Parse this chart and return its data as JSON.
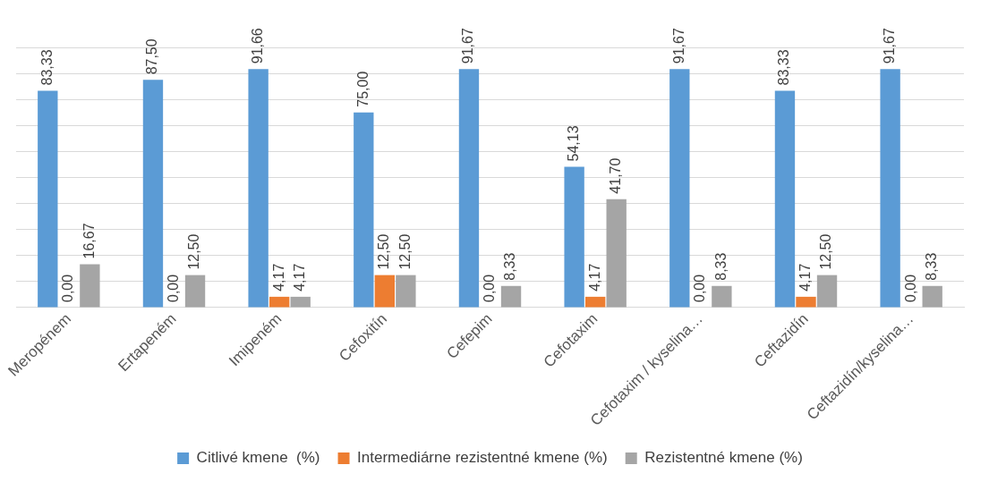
{
  "chart_data": {
    "type": "bar",
    "categories": [
      "Meropénem",
      "Ertapeném",
      "Imipeném",
      "Cefoxitín",
      "Cefepim",
      "Cefotaxim",
      "Cefotaxim / kyselina…",
      "Ceftazidín",
      "Ceftazidín/kyselina…"
    ],
    "series": [
      {
        "name": "Citlivé kmene  (%)",
        "color": "#5b9bd5",
        "values": [
          83.33,
          87.5,
          91.66,
          75,
          91.67,
          54.13,
          91.67,
          83.33,
          91.67
        ],
        "value_labels": [
          "83,33",
          "87,50",
          "91,66",
          "75,00",
          "91,67",
          "54,13",
          "91,67",
          "83,33",
          "91,67"
        ]
      },
      {
        "name": "Intermediárne rezistentné kmene (%)",
        "color": "#ed7d31",
        "values": [
          0,
          0,
          4.17,
          12.5,
          0,
          4.17,
          0,
          4.17,
          0
        ],
        "value_labels": [
          "0,00",
          "0,00",
          "4,17",
          "12,50",
          "0,00",
          "4,17",
          "0,00",
          "4,17",
          "0,00"
        ]
      },
      {
        "name": "Rezistentné kmene (%)",
        "color": "#a5a5a5",
        "values": [
          16.67,
          12.5,
          4.17,
          12.5,
          8.33,
          41.7,
          8.33,
          12.5,
          8.33
        ],
        "value_labels": [
          "16,67",
          "12,50",
          "4,17",
          "12,50",
          "8,33",
          "41,70",
          "8,33",
          "12,50",
          "8,33"
        ]
      }
    ],
    "ylim": [
      0,
      100
    ],
    "yticks": [
      {
        "value": 0,
        "label": null
      },
      {
        "value": 10,
        "label": null
      },
      {
        "value": 20,
        "label": null
      },
      {
        "value": 30,
        "label": null
      },
      {
        "value": 40,
        "label": null
      },
      {
        "value": 50,
        "label": null
      },
      {
        "value": 60,
        "label": null
      },
      {
        "value": 70,
        "label": null
      },
      {
        "value": 80,
        "label": null
      },
      {
        "value": 90,
        "label": null
      },
      {
        "value": 100,
        "label": null
      }
    ],
    "tick_labels": "x",
    "grid": "y",
    "legend": "bottom"
  }
}
